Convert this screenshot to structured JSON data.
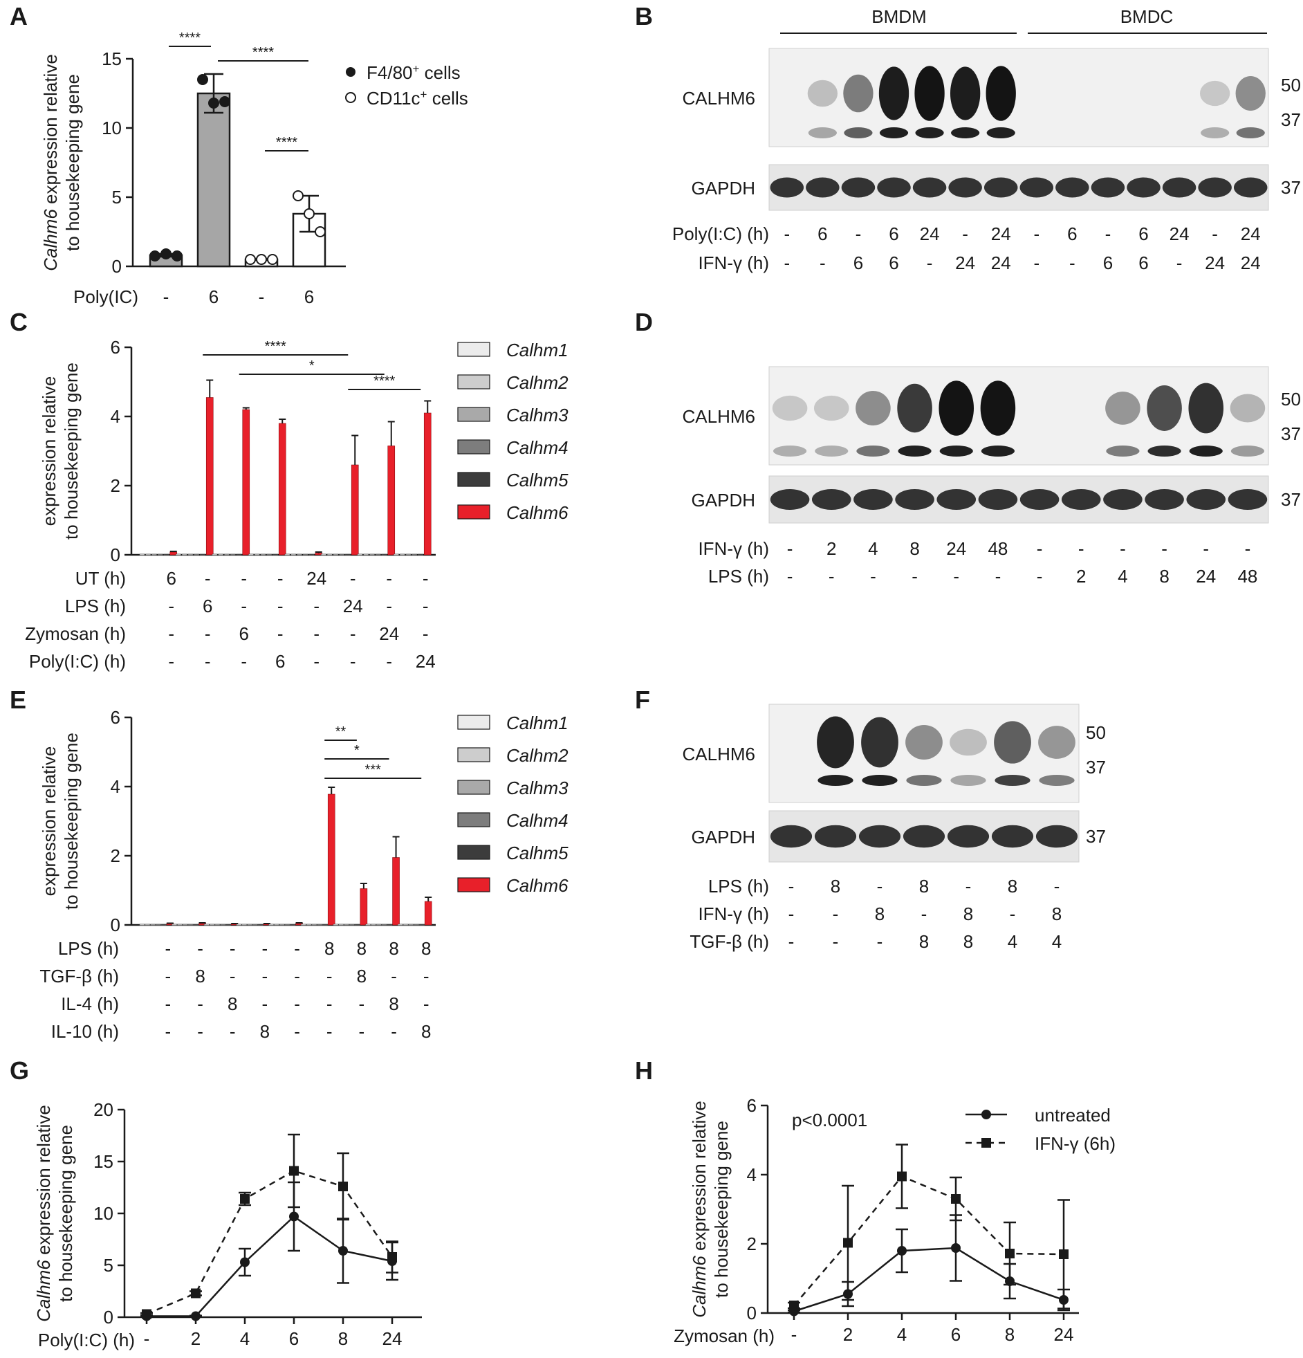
{
  "chart_data": [
    {
      "panel": "A",
      "type": "bar",
      "ylabel_italic": "Calhm6",
      "ylabel_rest": " expression relative",
      "ylabel2": "to housekeeping gene",
      "ylim": [
        0,
        15
      ],
      "yticks": [
        0,
        5,
        10,
        15
      ],
      "row_label": "Poly(IC)",
      "categories": [
        "-",
        "6",
        "-",
        "6"
      ],
      "values": [
        0.8,
        12.5,
        0.5,
        3.8
      ],
      "errors": [
        0.1,
        1.4,
        0.05,
        1.3
      ],
      "points": [
        [
          0.75,
          0.9,
          0.75
        ],
        [
          13.5,
          11.8,
          11.9
        ],
        [
          0.5,
          0.5,
          0.5
        ],
        [
          5.1,
          3.8,
          2.5
        ]
      ],
      "series_of_bar": [
        "F4/80+ cells",
        "F4/80+ cells",
        "CD11c+ cells",
        "CD11c+ cells"
      ],
      "legend": [
        "F4/80",
        "cells",
        "CD11c",
        "cells"
      ],
      "legend_sup": "+",
      "significance": [
        {
          "from": 0,
          "to": 1,
          "label": "****"
        },
        {
          "from": 1,
          "to": 3,
          "label": "****"
        },
        {
          "from": 2,
          "to": 3,
          "label": "****"
        }
      ]
    },
    {
      "panel": "B",
      "type": "blot",
      "groups": [
        "BMDM",
        "BMDC"
      ],
      "bands": [
        "CALHM6",
        "GAPDH"
      ],
      "markers_top": [
        "50",
        "37"
      ],
      "marker_bottom": "37",
      "rows": [
        {
          "label": "Poly(I:C) (h)",
          "values": [
            "-",
            "6",
            "-",
            "6",
            "24",
            "-",
            "24",
            "-",
            "6",
            "-",
            "6",
            "24",
            "-",
            "24"
          ]
        },
        {
          "label": "IFN-γ (h)",
          "values": [
            "-",
            "-",
            "6",
            "6",
            "-",
            "24",
            "24",
            "-",
            "-",
            "6",
            "6",
            "-",
            "24",
            "24"
          ]
        }
      ],
      "calhm6_intensity": [
        0,
        0.1,
        0.45,
        0.95,
        1,
        0.95,
        1,
        0,
        0,
        0,
        0,
        0,
        0.05,
        0.35
      ]
    },
    {
      "panel": "C",
      "type": "bar",
      "ylabel": "expression relative",
      "ylabel2": "to housekeeping gene",
      "ylim": [
        0,
        6
      ],
      "yticks": [
        0,
        2,
        4,
        6
      ],
      "legend": [
        "Calhm1",
        "Calhm2",
        "Calhm3",
        "Calhm4",
        "Calhm5",
        "Calhm6"
      ],
      "legend_colors": [
        "#ececec",
        "#cdcdcd",
        "#a9a9a9",
        "#7d7d7d",
        "#3c3c3c",
        "#e8202a"
      ],
      "calhm6_values": [
        0.08,
        4.55,
        4.2,
        3.8,
        0.05,
        2.6,
        3.15,
        4.1
      ],
      "calhm6_errors": [
        0.02,
        0.5,
        0.05,
        0.12,
        0.03,
        0.85,
        0.7,
        0.35
      ],
      "rows": [
        {
          "label": "UT (h)",
          "values": [
            "6",
            "-",
            "-",
            "-",
            "24",
            "-",
            "-",
            "-"
          ]
        },
        {
          "label": "LPS (h)",
          "values": [
            "-",
            "6",
            "-",
            "-",
            "-",
            "24",
            "-",
            "-"
          ]
        },
        {
          "label": "Zymosan (h)",
          "values": [
            "-",
            "-",
            "6",
            "-",
            "-",
            "-",
            "24",
            "-"
          ]
        },
        {
          "label": "Poly(I:C) (h)",
          "values": [
            "-",
            "-",
            "-",
            "6",
            "-",
            "-",
            "-",
            "24"
          ]
        }
      ],
      "significance": [
        {
          "from": 1,
          "to": 5,
          "label": "****"
        },
        {
          "from": 2,
          "to": 6,
          "label": "*"
        },
        {
          "from": 5,
          "to": 7,
          "label": "****"
        }
      ]
    },
    {
      "panel": "D",
      "type": "blot",
      "bands": [
        "CALHM6",
        "GAPDH"
      ],
      "markers_top": [
        "50",
        "37"
      ],
      "marker_bottom": "37",
      "rows": [
        {
          "label": "IFN-γ (h)",
          "values": [
            "-",
            "2",
            "4",
            "8",
            "24",
            "48",
            "-",
            "-",
            "-",
            "-",
            "-",
            "-"
          ]
        },
        {
          "label": "LPS (h)",
          "values": [
            "-",
            "-",
            "-",
            "-",
            "-",
            "-",
            "-",
            "2",
            "4",
            "8",
            "24",
            "48"
          ]
        }
      ],
      "calhm6_intensity": [
        0.05,
        0.05,
        0.35,
        0.8,
        1,
        1,
        0,
        0,
        0.3,
        0.7,
        0.85,
        0.15
      ]
    },
    {
      "panel": "E",
      "type": "bar",
      "ylabel": "expression relative",
      "ylabel2": "to housekeeping gene",
      "ylim": [
        0,
        6
      ],
      "yticks": [
        0,
        2,
        4,
        6
      ],
      "legend": [
        "Calhm1",
        "Calhm2",
        "Calhm3",
        "Calhm4",
        "Calhm5",
        "Calhm6"
      ],
      "legend_colors": [
        "#ececec",
        "#cdcdcd",
        "#a9a9a9",
        "#7d7d7d",
        "#3c3c3c",
        "#e8202a"
      ],
      "calhm6_values": [
        0.04,
        0.05,
        0.03,
        0.03,
        0.05,
        3.78,
        1.05,
        1.95,
        0.68
      ],
      "calhm6_errors": [
        0.01,
        0.01,
        0.01,
        0.01,
        0.01,
        0.2,
        0.15,
        0.6,
        0.12
      ],
      "rows": [
        {
          "label": "LPS (h)",
          "values": [
            "-",
            "-",
            "-",
            "-",
            "-",
            "8",
            "8",
            "8",
            "8"
          ]
        },
        {
          "label": "TGF-β (h)",
          "values": [
            "-",
            "8",
            "-",
            "-",
            "-",
            "-",
            "8",
            "-",
            "-"
          ]
        },
        {
          "label": "IL-4 (h)",
          "values": [
            "-",
            "-",
            "8",
            "-",
            "-",
            "-",
            "-",
            "8",
            "-"
          ]
        },
        {
          "label": "IL-10 (h)",
          "values": [
            "-",
            "-",
            "-",
            "8",
            "-",
            "-",
            "-",
            "-",
            "8"
          ]
        }
      ],
      "significance": [
        {
          "from": 5,
          "to": 6,
          "label": "**"
        },
        {
          "from": 5,
          "to": 7,
          "label": "*"
        },
        {
          "from": 5,
          "to": 8,
          "label": "***"
        }
      ]
    },
    {
      "panel": "F",
      "type": "blot",
      "bands": [
        "CALHM6",
        "GAPDH"
      ],
      "markers_top": [
        "50",
        "37"
      ],
      "marker_bottom": "37",
      "rows": [
        {
          "label": "LPS (h)",
          "values": [
            "-",
            "8",
            "-",
            "8",
            "-",
            "8",
            "-"
          ]
        },
        {
          "label": "IFN-γ (h)",
          "values": [
            "-",
            "-",
            "8",
            "-",
            "8",
            "-",
            "8"
          ]
        },
        {
          "label": "TGF-β (h)",
          "values": [
            "-",
            "-",
            "-",
            "8",
            "8",
            "4",
            "4"
          ]
        }
      ],
      "calhm6_intensity": [
        0,
        0.9,
        0.85,
        0.35,
        0.1,
        0.6,
        0.3
      ]
    },
    {
      "panel": "G",
      "type": "line",
      "ylabel_italic": "Calhm6",
      "ylabel_rest": " expression relative",
      "ylabel2": "to housekeeping gene",
      "xlabel": "Poly(I:C) (h)",
      "categories": [
        "-",
        "2",
        "4",
        "6",
        "8",
        "24"
      ],
      "ylim": [
        0,
        20
      ],
      "yticks": [
        0,
        5,
        10,
        15,
        20
      ],
      "series": [
        {
          "style": "solid",
          "marker": "circle",
          "values": [
            0.1,
            0.1,
            5.3,
            9.7,
            6.4,
            5.4
          ],
          "errors": [
            0.05,
            0.05,
            1.3,
            3.3,
            3.1,
            1.8
          ]
        },
        {
          "style": "dashed",
          "marker": "square",
          "values": [
            0.3,
            2.3,
            11.4,
            14.1,
            12.6,
            5.8
          ],
          "errors": [
            0.1,
            0.2,
            0.6,
            3.5,
            3.2,
            1.5
          ]
        }
      ]
    },
    {
      "panel": "H",
      "type": "line",
      "ylabel_italic": "Calhm6",
      "ylabel_rest": " expression relative",
      "ylabel2": "to housekeeping gene",
      "xlabel": "Zymosan (h)",
      "categories": [
        "-",
        "2",
        "4",
        "6",
        "8",
        "24"
      ],
      "ylim": [
        0,
        6
      ],
      "yticks": [
        0,
        2,
        4,
        6
      ],
      "annotation": "p<0.0001",
      "series": [
        {
          "name": "untreated",
          "style": "solid",
          "marker": "circle",
          "values": [
            0.05,
            0.55,
            1.8,
            1.88,
            0.92,
            0.38
          ],
          "errors": [
            0.03,
            0.35,
            0.62,
            0.95,
            0.5,
            0.3
          ]
        },
        {
          "name": "IFN-γ (6h)",
          "style": "dashed",
          "marker": "square",
          "values": [
            0.22,
            2.03,
            3.95,
            3.3,
            1.72,
            1.7
          ],
          "errors": [
            0.08,
            1.65,
            0.92,
            0.62,
            0.9,
            1.57
          ]
        }
      ]
    }
  ],
  "panels": {
    "A": "A",
    "B": "B",
    "C": "C",
    "D": "D",
    "E": "E",
    "F": "F",
    "G": "G",
    "H": "H"
  },
  "colors": {
    "bar_grey": "#a6a6a6",
    "calhm6_red": "#e8202a",
    "axis": "#1a1a1a"
  }
}
